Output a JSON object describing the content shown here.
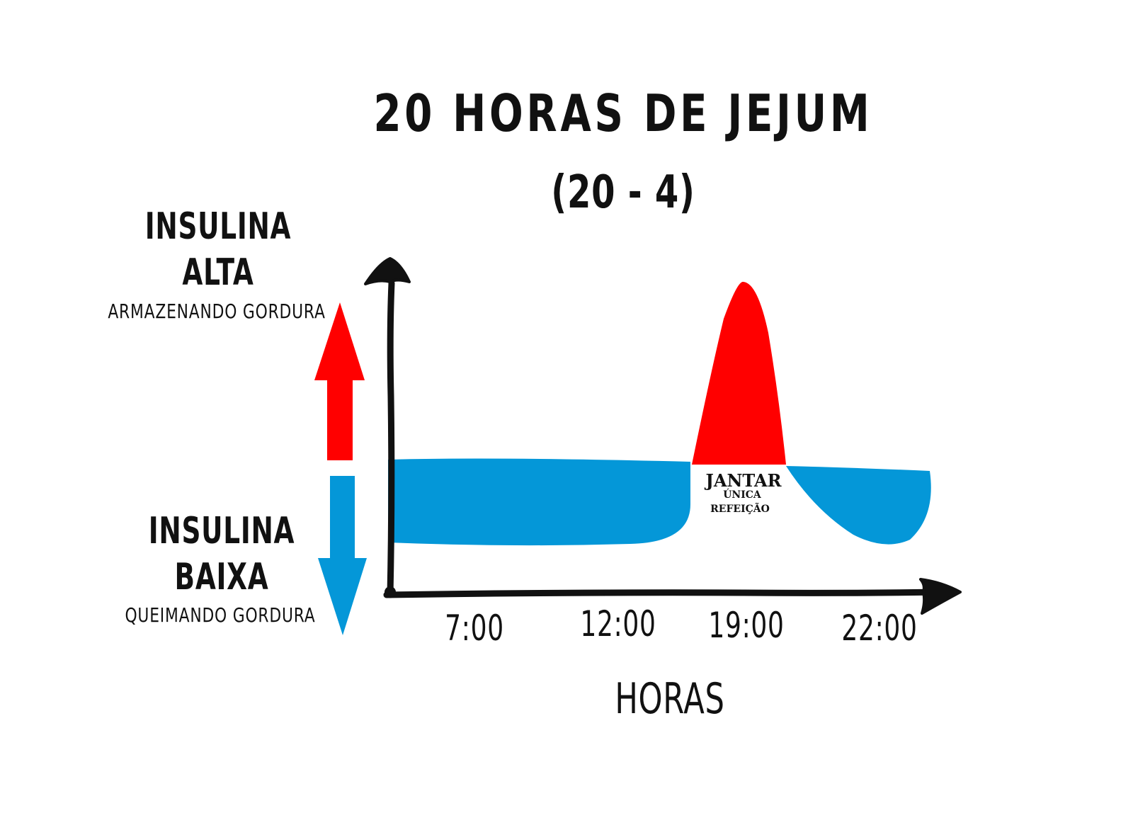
{
  "chart_data": {
    "type": "area",
    "title": "20 HORAS DE JEJUM",
    "subtitle": "(20 - 4)",
    "xlabel": "HORAS",
    "x_ticks": [
      "7:00",
      "12:00",
      "19:00",
      "22:00"
    ],
    "y_axis": {
      "high_label": "INSULINA",
      "high_label_2": "ALTA",
      "high_note": "ARMAZENANDO GORDURA",
      "low_label": "INSULINA",
      "low_label_2": "BAIXA",
      "low_note": "QUEIMANDO GORDURA"
    },
    "series": [
      {
        "name": "insulina baixa",
        "color": "#0497D8",
        "segments": [
          {
            "x_start": "5:30",
            "x_end": "17:00"
          },
          {
            "x_start": "20:30",
            "x_end": "22:30"
          }
        ]
      },
      {
        "name": "insulina alta",
        "color": "#FF0000",
        "peak_x": "18:30"
      }
    ],
    "annotation": {
      "label": "JANTAR",
      "line2": "ÚNICA",
      "line3": "REFEIÇÃO"
    },
    "grid": false,
    "legend": "none"
  },
  "colors": {
    "high": "#FF0000",
    "low": "#0497D8",
    "ink": "#111111"
  },
  "icons": {
    "up_arrow": "red-up-arrow-icon",
    "down_arrow": "blue-down-arrow-icon"
  }
}
